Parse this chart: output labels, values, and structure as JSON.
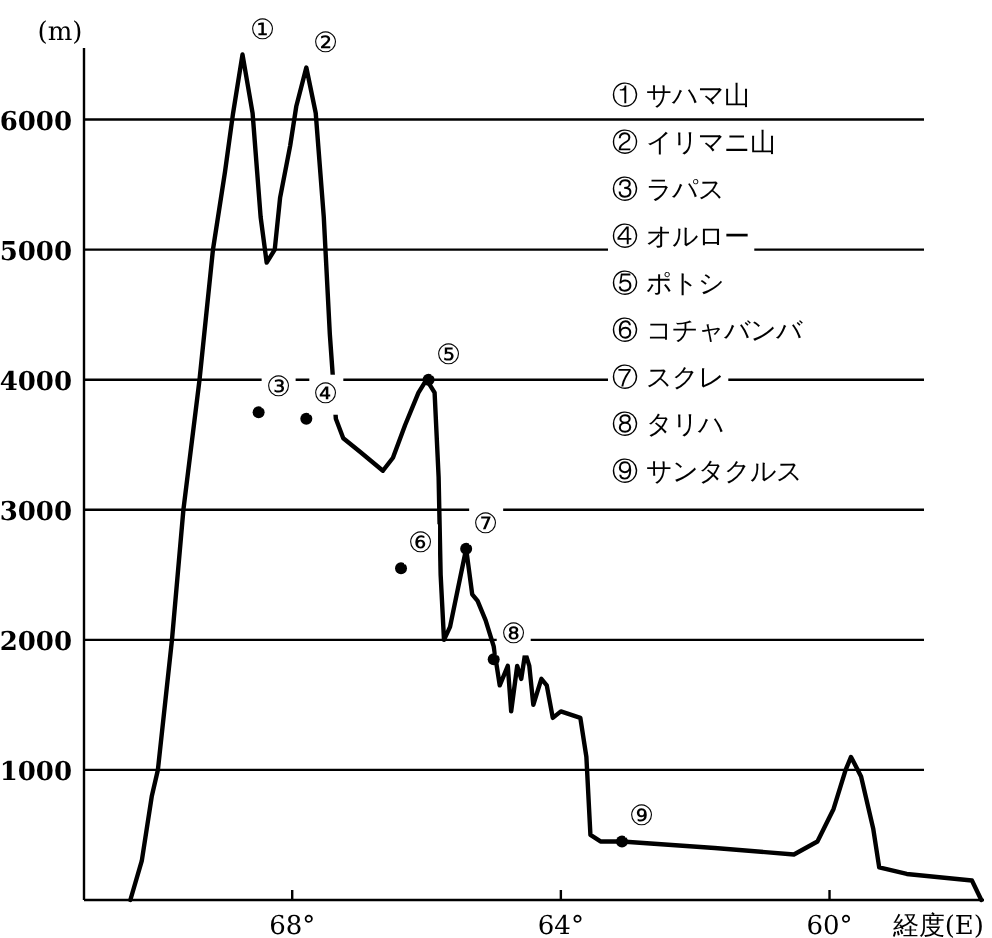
{
  "chart_data": {
    "type": "line",
    "ylabel": "(m)",
    "xlabel": "経度(E)",
    "xlim": [
      71.1,
      57.7
    ],
    "xticks": [
      {
        "value": 68,
        "label": "68°"
      },
      {
        "value": 64,
        "label": "64°"
      },
      {
        "value": 60,
        "label": "60°"
      }
    ],
    "ylim": [
      0,
      6550
    ],
    "yticks": [
      1000,
      2000,
      3000,
      4000,
      5000,
      6000
    ],
    "grid": "y",
    "series": [
      {
        "color": "#000000",
        "x": [
          70.41,
          70.24,
          70.09,
          70.0,
          69.79,
          69.62,
          69.38,
          69.18,
          69.0,
          68.88,
          68.74,
          68.59,
          68.47,
          68.38,
          68.26,
          68.18,
          68.03,
          67.94,
          67.79,
          67.65,
          67.53,
          67.44,
          67.35,
          67.24,
          67.0,
          66.65,
          66.5,
          66.32,
          66.12,
          66.0,
          65.88,
          65.82,
          65.79,
          65.74,
          65.65,
          65.53,
          65.41,
          65.32,
          65.24,
          65.12,
          65.0,
          64.91,
          64.79,
          64.74,
          64.65,
          64.59,
          64.53,
          64.47,
          64.41,
          64.29,
          64.21,
          64.12,
          64.0,
          63.71,
          63.62,
          63.56,
          63.41,
          63.09,
          61.71,
          60.53,
          60.18,
          59.94,
          59.76,
          59.68,
          59.53,
          59.35,
          59.26,
          58.85,
          57.88,
          57.74
        ],
        "values": [
          0,
          300,
          800,
          1000,
          2000,
          3000,
          4000,
          5000,
          5600,
          6050,
          6500,
          6050,
          5250,
          4900,
          5000,
          5400,
          5800,
          6100,
          6400,
          6050,
          5250,
          4350,
          3700,
          3550,
          3450,
          3300,
          3400,
          3650,
          3900,
          4000,
          3900,
          3250,
          2500,
          2000,
          2100,
          2400,
          2700,
          2350,
          2300,
          2150,
          1950,
          1650,
          1800,
          1450,
          1800,
          1700,
          1900,
          1800,
          1500,
          1700,
          1650,
          1400,
          1450,
          1400,
          1100,
          500,
          450,
          450,
          400,
          350,
          450,
          700,
          1000,
          1100,
          950,
          550,
          250,
          200,
          150,
          0
        ]
      },
      {
        "type": "scatter",
        "color": "#000000",
        "marker": "circle",
        "x": [
          68.5,
          67.79,
          65.97,
          66.38,
          65.41,
          65.0,
          63.09
        ],
        "values": [
          3750,
          3700,
          4000,
          2550,
          2700,
          1850,
          450
        ]
      }
    ],
    "annotations": [
      {
        "text": "①",
        "x": 68.74,
        "y": 6500
      },
      {
        "text": "②",
        "x": 67.79,
        "y": 6400
      },
      {
        "text": "③",
        "x": 68.5,
        "y": 3750
      },
      {
        "text": "④",
        "x": 67.79,
        "y": 3700
      },
      {
        "text": "⑤",
        "x": 65.97,
        "y": 4000
      },
      {
        "text": "⑥",
        "x": 66.38,
        "y": 2550
      },
      {
        "text": "⑦",
        "x": 65.41,
        "y": 2700
      },
      {
        "text": "⑧",
        "x": 65.0,
        "y": 1850
      },
      {
        "text": "⑨",
        "x": 63.09,
        "y": 450
      },
      "① サハマ山",
      "② イリマニ山",
      "③ ラパス",
      "④ オルロー",
      "⑤ ポトシ",
      "⑥ コチャバンバ",
      "⑦ スクレ",
      "⑧ タリハ",
      "⑨ サンタクルス"
    ]
  }
}
